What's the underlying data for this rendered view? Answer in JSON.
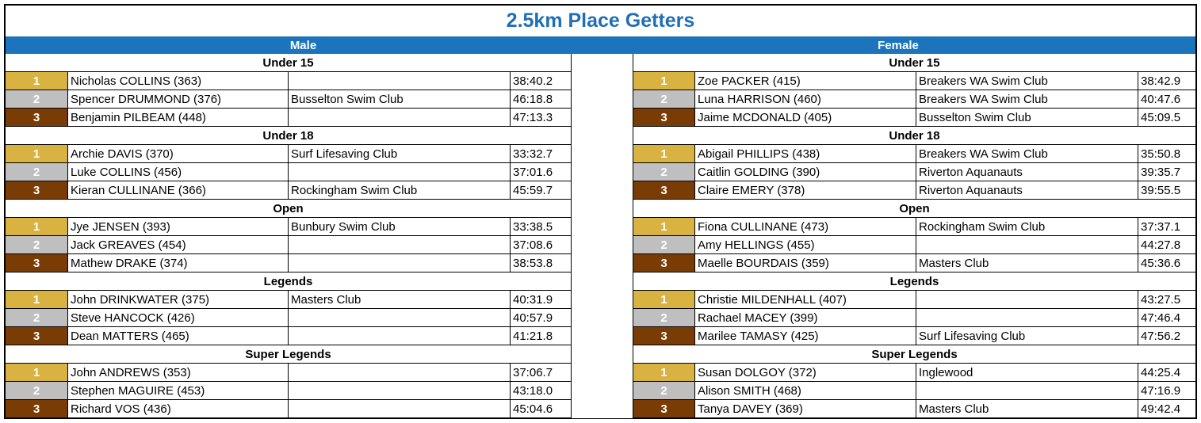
{
  "title": "2.5km Place Getters",
  "colors": {
    "gold": "#d8b341",
    "silver": "#bfbfbf",
    "bronze": "#7a3c05",
    "header_blue": "#1c75bc",
    "title_blue": "#1f6fb4"
  },
  "male": {
    "label": "Male",
    "categories": [
      {
        "name": "Under 15",
        "rows": [
          {
            "place": "1",
            "name": "Nicholas COLLINS (363)",
            "club": "",
            "time": "38:40.2"
          },
          {
            "place": "2",
            "name": "Spencer DRUMMOND (376)",
            "club": "Busselton Swim Club",
            "time": "46:18.8"
          },
          {
            "place": "3",
            "name": "Benjamin PILBEAM (448)",
            "club": "",
            "time": "47:13.3"
          }
        ]
      },
      {
        "name": "Under 18",
        "rows": [
          {
            "place": "1",
            "name": "Archie DAVIS (370)",
            "club": "Surf Lifesaving Club",
            "time": "33:32.7"
          },
          {
            "place": "2",
            "name": "Luke COLLINS (456)",
            "club": "",
            "time": "37:01.6"
          },
          {
            "place": "3",
            "name": "Kieran CULLINANE (366)",
            "club": "Rockingham Swim Club",
            "time": "45:59.7"
          }
        ]
      },
      {
        "name": "Open",
        "rows": [
          {
            "place": "1",
            "name": "Jye JENSEN (393)",
            "club": "Bunbury Swim Club",
            "time": "33:38.5"
          },
          {
            "place": "2",
            "name": "Jack GREAVES (454)",
            "club": "",
            "time": "37:08.6"
          },
          {
            "place": "3",
            "name": "Mathew DRAKE (374)",
            "club": "",
            "time": "38:53.8"
          }
        ]
      },
      {
        "name": "Legends",
        "rows": [
          {
            "place": "1",
            "name": "John DRINKWATER (375)",
            "club": "Masters Club",
            "time": "40:31.9"
          },
          {
            "place": "2",
            "name": "Steve HANCOCK (426)",
            "club": "",
            "time": "40:57.9"
          },
          {
            "place": "3",
            "name": "Dean MATTERS (465)",
            "club": "",
            "time": "41:21.8"
          }
        ]
      },
      {
        "name": "Super Legends",
        "rows": [
          {
            "place": "1",
            "name": "John ANDREWS (353)",
            "club": "",
            "time": "37:06.7"
          },
          {
            "place": "2",
            "name": "Stephen MAGUIRE (453)",
            "club": "",
            "time": "43:18.0"
          },
          {
            "place": "3",
            "name": "Richard VOS (436)",
            "club": "",
            "time": "45:04.6"
          }
        ]
      }
    ]
  },
  "female": {
    "label": "Female",
    "categories": [
      {
        "name": "Under 15",
        "rows": [
          {
            "place": "1",
            "name": "Zoe PACKER (415)",
            "club": "Breakers WA Swim Club",
            "time": "38:42.9"
          },
          {
            "place": "2",
            "name": "Luna HARRISON (460)",
            "club": "Breakers WA Swim Club",
            "time": "40:47.6"
          },
          {
            "place": "3",
            "name": "Jaime MCDONALD (405)",
            "club": "Busselton Swim Club",
            "time": "45:09.5"
          }
        ]
      },
      {
        "name": "Under 18",
        "rows": [
          {
            "place": "1",
            "name": "Abigail PHILLIPS (438)",
            "club": "Breakers WA Swim Club",
            "time": "35:50.8"
          },
          {
            "place": "2",
            "name": "Caitlin GOLDING (390)",
            "club": "Riverton Aquanauts",
            "time": "39:35.7"
          },
          {
            "place": "3",
            "name": "Claire EMERY (378)",
            "club": "Riverton Aquanauts",
            "time": "39:55.5"
          }
        ]
      },
      {
        "name": "Open",
        "rows": [
          {
            "place": "1",
            "name": "Fiona CULLINANE (473)",
            "club": "Rockingham Swim Club",
            "time": "37:37.1"
          },
          {
            "place": "2",
            "name": "Amy HELLINGS (455)",
            "club": "",
            "time": "44:27.8"
          },
          {
            "place": "3",
            "name": "Maelle BOURDAIS (359)",
            "club": "Masters Club",
            "time": "45:36.6"
          }
        ]
      },
      {
        "name": "Legends",
        "rows": [
          {
            "place": "1",
            "name": "Christie MILDENHALL (407)",
            "club": "",
            "time": "43:27.5"
          },
          {
            "place": "2",
            "name": "Rachael MACEY (399)",
            "club": "",
            "time": "47:46.4"
          },
          {
            "place": "3",
            "name": "Marilee TAMASY (425)",
            "club": "Surf Lifesaving Club",
            "time": "47:56.2"
          }
        ]
      },
      {
        "name": "Super Legends",
        "rows": [
          {
            "place": "1",
            "name": "Susan DOLGOY (372)",
            "club": "Inglewood",
            "time": "44:25.4"
          },
          {
            "place": "2",
            "name": "Alison SMITH (468)",
            "club": "",
            "time": "47:16.9"
          },
          {
            "place": "3",
            "name": "Tanya DAVEY (369)",
            "club": "Masters Club",
            "time": "49:42.4"
          }
        ]
      }
    ]
  }
}
